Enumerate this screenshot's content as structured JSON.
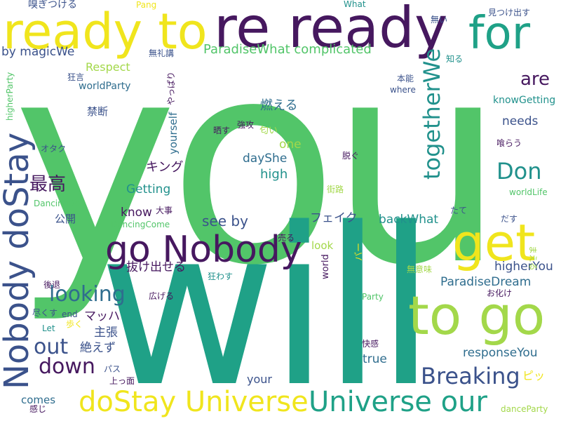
{
  "palette": {
    "dark_purple": "#46185f",
    "indigo": "#3b528b",
    "blue": "#2f6d8e",
    "teal": "#21918c",
    "sea_green": "#1fa187",
    "green": "#52c569",
    "lime": "#a3d84a",
    "yellow": "#f0e51d"
  },
  "words": [
    {
      "text": "you",
      "color": "#52c569"
    },
    {
      "text": "will",
      "color": "#1fa187"
    },
    {
      "text": "re ready",
      "color": "#46185f"
    },
    {
      "text": "ready to",
      "color": "#f0e51d"
    },
    {
      "text": "for",
      "color": "#1fa187"
    },
    {
      "text": "get",
      "color": "#f0e51d"
    },
    {
      "text": "to go",
      "color": "#a3d84a"
    },
    {
      "text": "go Nobody",
      "color": "#46185f"
    },
    {
      "text": "Nobody doStay",
      "color": "#3b528b"
    },
    {
      "text": "doStay Universe",
      "color": "#f0e51d"
    },
    {
      "text": "Universe our",
      "color": "#1fa187"
    },
    {
      "text": "togetherWe",
      "color": "#21918c"
    },
    {
      "text": "Don",
      "color": "#21918c"
    },
    {
      "text": "Breaking",
      "color": "#3b528b"
    },
    {
      "text": "looking",
      "color": "#2f6d8e"
    },
    {
      "text": "out",
      "color": "#3b528b"
    },
    {
      "text": "down",
      "color": "#46185f"
    },
    {
      "text": "are",
      "color": "#46185f"
    },
    {
      "text": "最高",
      "color": "#46185f"
    },
    {
      "text": "ParadiseWhat complicated",
      "color": "#52c569"
    },
    {
      "text": "by magicWe",
      "color": "#3b528b"
    },
    {
      "text": "Respect",
      "color": "#a3d84a"
    },
    {
      "text": "worldParty",
      "color": "#2f6d8e"
    },
    {
      "text": "knowGetting",
      "color": "#21918c"
    },
    {
      "text": "needs",
      "color": "#3b528b"
    },
    {
      "text": "燃える",
      "color": "#2f6d8e"
    },
    {
      "text": "one",
      "color": "#a3d84a"
    },
    {
      "text": "dayShe",
      "color": "#2f6d8e"
    },
    {
      "text": "high",
      "color": "#21918c"
    },
    {
      "text": "キング",
      "color": "#46185f"
    },
    {
      "text": "Getting",
      "color": "#21918c"
    },
    {
      "text": "know",
      "color": "#46185f"
    },
    {
      "text": "see by",
      "color": "#3b528b"
    },
    {
      "text": "フェイク",
      "color": "#3b528b"
    },
    {
      "text": "backWhat",
      "color": "#21918c"
    },
    {
      "text": "higherYou",
      "color": "#3b528b"
    },
    {
      "text": "ParadiseDream",
      "color": "#2f6d8e"
    },
    {
      "text": "抜け出せる",
      "color": "#46185f"
    },
    {
      "text": "マッハ",
      "color": "#46185f"
    },
    {
      "text": "主張",
      "color": "#3b528b"
    },
    {
      "text": "絶えず",
      "color": "#3b528b"
    },
    {
      "text": "responseYou",
      "color": "#2f6d8e"
    },
    {
      "text": "true",
      "color": "#2f6d8e"
    },
    {
      "text": "your",
      "color": "#3b528b"
    },
    {
      "text": "ピッ",
      "color": "#f0e51d"
    },
    {
      "text": "comes",
      "color": "#2f6d8e"
    },
    {
      "text": "yourself",
      "color": "#2f6d8e"
    },
    {
      "text": "禁断",
      "color": "#3b528b"
    },
    {
      "text": "公開",
      "color": "#3b528b"
    },
    {
      "text": "嗅ぎつける",
      "color": "#3b528b"
    },
    {
      "text": "Pang",
      "color": "#f0e51d"
    },
    {
      "text": "What",
      "color": "#21918c"
    },
    {
      "text": "無い",
      "color": "#3b528b"
    },
    {
      "text": "見つけ出す",
      "color": "#3b528b"
    },
    {
      "text": "無礼講",
      "color": "#3b528b"
    },
    {
      "text": "狂言",
      "color": "#3b528b"
    },
    {
      "text": "higherParty",
      "color": "#52c569"
    },
    {
      "text": "やっぱり",
      "color": "#46185f"
    },
    {
      "text": "本能",
      "color": "#3b528b"
    },
    {
      "text": "知る",
      "color": "#21918c"
    },
    {
      "text": "where",
      "color": "#3b528b"
    },
    {
      "text": "晒す",
      "color": "#46185f"
    },
    {
      "text": "強攻",
      "color": "#46185f"
    },
    {
      "text": "匂い",
      "color": "#a3d84a"
    },
    {
      "text": "喰らう",
      "color": "#46185f"
    },
    {
      "text": "オタク",
      "color": "#3b528b"
    },
    {
      "text": "脱ぐ",
      "color": "#46185f"
    },
    {
      "text": "街路",
      "color": "#a3d84a"
    },
    {
      "text": "worldLife",
      "color": "#52c569"
    },
    {
      "text": "DancingDo",
      "color": "#52c569"
    },
    {
      "text": "大事",
      "color": "#46185f"
    },
    {
      "text": "DancingCome",
      "color": "#52c569"
    },
    {
      "text": "たて",
      "color": "#3b528b"
    },
    {
      "text": "だす",
      "color": "#3b528b"
    },
    {
      "text": "まえる",
      "color": "#a3d84a"
    },
    {
      "text": "売る",
      "color": "#46185f"
    },
    {
      "text": "look",
      "color": "#a3d84a"
    },
    {
      "text": "バー",
      "color": "#f0e51d"
    },
    {
      "text": "無意味",
      "color": "#a3d84a"
    },
    {
      "text": "world",
      "color": "#46185f"
    },
    {
      "text": "狂わす",
      "color": "#21918c"
    },
    {
      "text": "お化け",
      "color": "#46185f"
    },
    {
      "text": "後退",
      "color": "#46185f"
    },
    {
      "text": "広げる",
      "color": "#46185f"
    },
    {
      "text": "Party",
      "color": "#52c569"
    },
    {
      "text": "尽くす",
      "color": "#3b528b"
    },
    {
      "text": "end",
      "color": "#3b528b"
    },
    {
      "text": "歩く",
      "color": "#f0e51d"
    },
    {
      "text": "Let",
      "color": "#21918c"
    },
    {
      "text": "快感",
      "color": "#46185f"
    },
    {
      "text": "パス",
      "color": "#3b528b"
    },
    {
      "text": "上っ面",
      "color": "#46185f"
    },
    {
      "text": "感じ",
      "color": "#46185f"
    },
    {
      "text": "danceParty",
      "color": "#a3d84a"
    }
  ]
}
